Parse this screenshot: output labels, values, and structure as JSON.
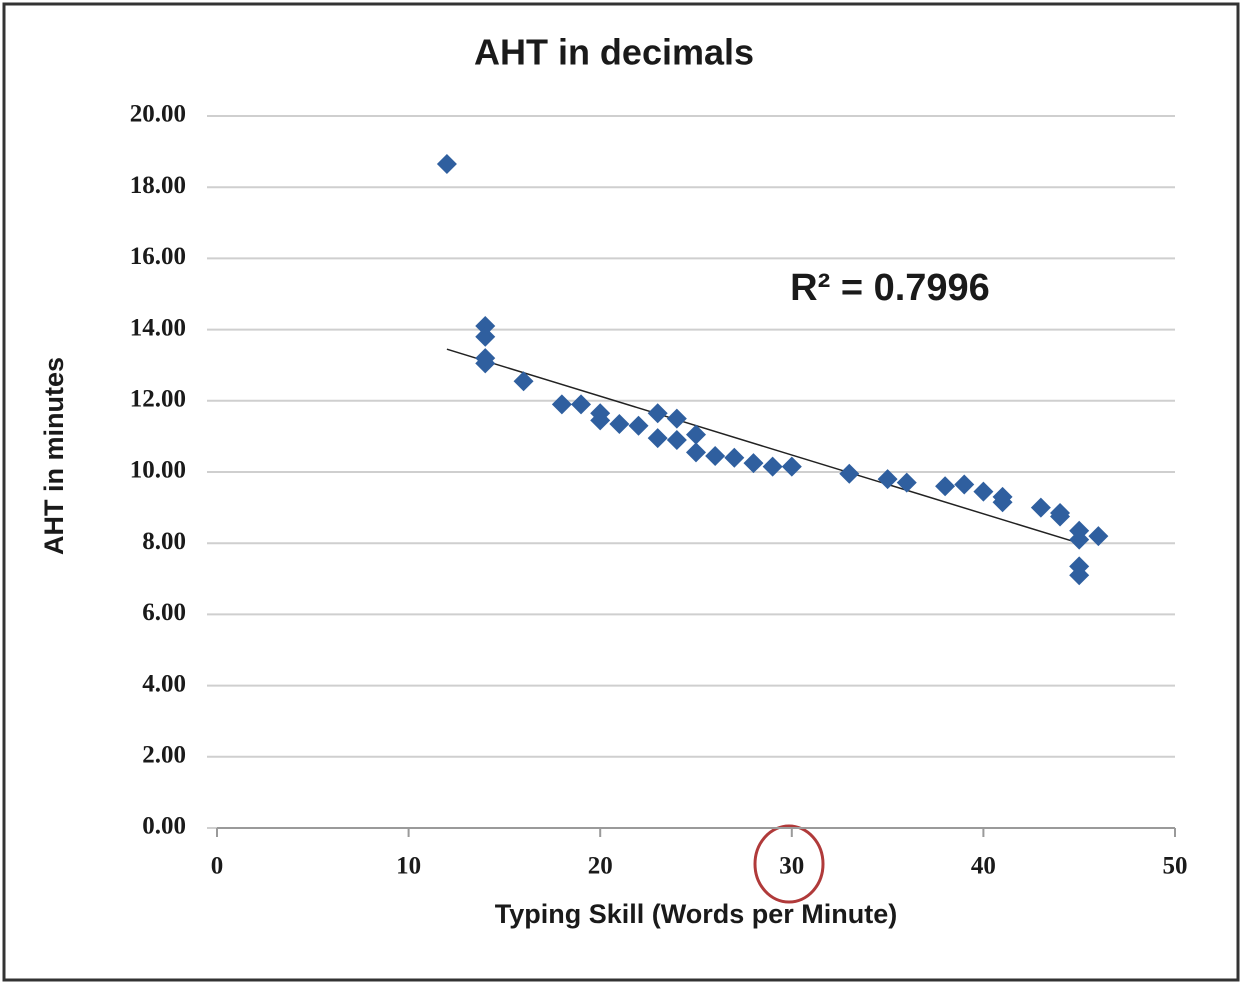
{
  "chart_data": {
    "type": "scatter",
    "title": "AHT in decimals",
    "x_label": "Typing Skill (Words per Minute)",
    "y_label": "AHT in minutes",
    "annotation": "R² = 0.7996",
    "color": "#2f5f9f",
    "x": [
      12,
      14,
      14,
      14,
      14,
      16,
      18,
      19,
      20,
      20,
      21,
      22,
      23,
      23,
      24,
      24,
      25,
      25,
      26,
      27,
      28,
      29,
      30,
      33,
      35,
      36,
      38,
      39,
      40,
      41,
      41,
      43,
      44,
      44,
      45,
      45,
      45,
      45,
      46
    ],
    "values": [
      18.65,
      14.1,
      13.8,
      13.2,
      13.05,
      12.55,
      11.9,
      11.9,
      11.65,
      11.45,
      11.35,
      11.3,
      11.65,
      10.95,
      11.5,
      10.9,
      11.05,
      10.55,
      10.45,
      10.4,
      10.25,
      10.15,
      10.15,
      9.95,
      9.8,
      9.7,
      9.6,
      9.65,
      9.45,
      9.3,
      9.15,
      9.0,
      8.85,
      8.75,
      8.35,
      8.1,
      7.35,
      7.1,
      8.2
    ],
    "trendline": {
      "x": [
        12,
        45
      ],
      "values": [
        13.45,
        8.0
      ],
      "color": "#222222"
    },
    "xlim": [
      0,
      50
    ],
    "xticks": [
      0,
      10,
      20,
      30,
      40,
      50
    ],
    "ylim": [
      0,
      20
    ],
    "yticks": [
      {
        "value": 0,
        "label": "0.00"
      },
      {
        "value": 2,
        "label": "2.00"
      },
      {
        "value": 4,
        "label": "4.00"
      },
      {
        "value": 6,
        "label": "6.00"
      },
      {
        "value": 8,
        "label": "8.00"
      },
      {
        "value": 10,
        "label": "10.00"
      },
      {
        "value": 12,
        "label": "12.00"
      },
      {
        "value": 14,
        "label": "14.00"
      },
      {
        "value": 16,
        "label": "16.00"
      },
      {
        "value": 18,
        "label": "18.00"
      },
      {
        "value": 20,
        "label": "20.00"
      }
    ],
    "grid": true
  }
}
